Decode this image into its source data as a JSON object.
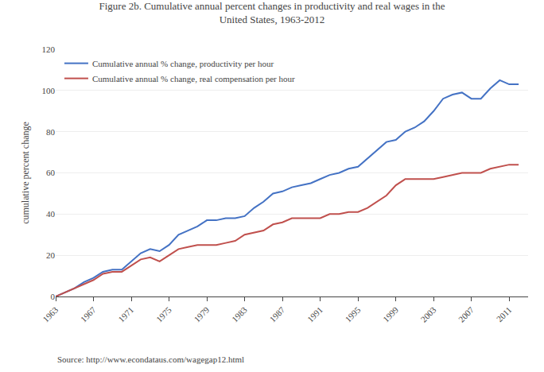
{
  "chart_data": {
    "type": "line",
    "title": "Figure 2b. Cumulative annual percent changes in productivity and real wages in the\nUnited States, 1963-2012",
    "ylabel": "cumulative percent change",
    "source": "Source: http://www.econdataus.com/wagegap12.html",
    "x": [
      1963,
      1964,
      1965,
      1966,
      1967,
      1968,
      1969,
      1970,
      1971,
      1972,
      1973,
      1974,
      1975,
      1976,
      1977,
      1978,
      1979,
      1980,
      1981,
      1982,
      1983,
      1984,
      1985,
      1986,
      1987,
      1988,
      1989,
      1990,
      1991,
      1992,
      1993,
      1994,
      1995,
      1996,
      1997,
      1998,
      1999,
      2000,
      2001,
      2002,
      2003,
      2004,
      2005,
      2006,
      2007,
      2008,
      2009,
      2010,
      2011,
      2012
    ],
    "series": [
      {
        "name": "Cumulative annual % change, productivity per hour",
        "color": "#4472C4",
        "values": [
          0,
          2,
          4,
          7,
          9,
          12,
          13,
          13,
          17,
          21,
          23,
          22,
          25,
          30,
          32,
          34,
          37,
          37,
          38,
          38,
          39,
          43,
          46,
          50,
          51,
          53,
          54,
          55,
          57,
          59,
          60,
          62,
          63,
          67,
          71,
          75,
          76,
          80,
          82,
          85,
          90,
          96,
          98,
          99,
          96,
          96,
          101,
          105,
          103,
          103
        ]
      },
      {
        "name": "Cumulative annual % change, real compensation per hour",
        "color": "#C0504D",
        "values": [
          0,
          2,
          4,
          6,
          8,
          11,
          12,
          12,
          15,
          18,
          19,
          17,
          20,
          23,
          24,
          25,
          25,
          25,
          26,
          27,
          30,
          31,
          32,
          35,
          36,
          38,
          38,
          38,
          38,
          40,
          40,
          41,
          41,
          43,
          46,
          49,
          54,
          57,
          57,
          57,
          57,
          58,
          59,
          60,
          60,
          60,
          62,
          63,
          64,
          64
        ]
      }
    ],
    "xlim": [
      1963,
      2013
    ],
    "ylim": [
      0,
      120
    ],
    "xticks": [
      1963,
      1967,
      1971,
      1975,
      1979,
      1983,
      1987,
      1991,
      1995,
      1999,
      2003,
      2007,
      2011
    ],
    "yticks": [
      0,
      20,
      40,
      60,
      80,
      100,
      120
    ],
    "grid": true,
    "legend": "upper left"
  }
}
